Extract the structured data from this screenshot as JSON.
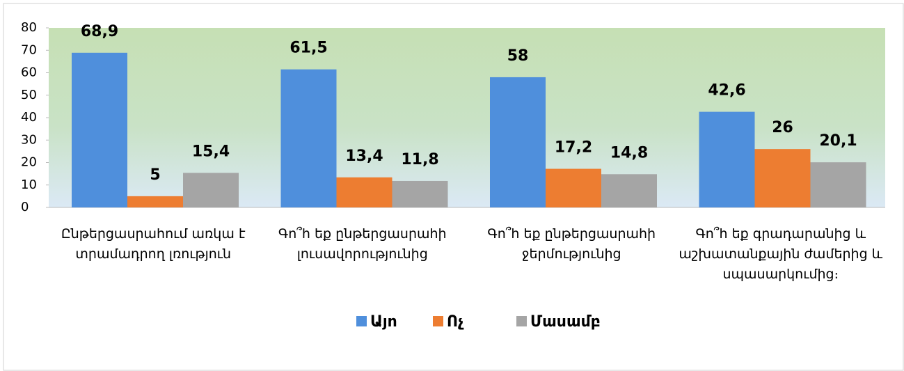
{
  "chart_data": {
    "type": "bar",
    "categories": [
      "Ընթերցասրահում առկա է տրամադրող լռություն",
      "Գո՞հ եք ընթերցասրահի լուսավորությունից",
      "Գո՞հ եք ընթերցասրահի ջերմությունից",
      "Գո՞հ եք գրադարանից և աշխատանքային ժամերից և սպասարկումից։"
    ],
    "series": [
      {
        "name": "Այո",
        "color": "#4f8fdc",
        "values": [
          68.9,
          61.5,
          58,
          42.6
        ],
        "value_labels": [
          "68,9",
          "61,5",
          "58",
          "42,6"
        ]
      },
      {
        "name": "Ոչ",
        "color": "#ed7d31",
        "values": [
          5,
          13.4,
          17.2,
          26
        ],
        "value_labels": [
          "5",
          "13,4",
          "17,2",
          "26"
        ]
      },
      {
        "name": "Մասամբ",
        "color": "#a5a5a5",
        "values": [
          15.4,
          11.8,
          14.8,
          20.1
        ],
        "value_labels": [
          "15,4",
          "11,8",
          "14,8",
          "20,1"
        ]
      }
    ],
    "ylim": [
      0,
      80
    ],
    "yticks": [
      0,
      10,
      20,
      30,
      40,
      50,
      60,
      70,
      80
    ],
    "legend": "bottom"
  }
}
